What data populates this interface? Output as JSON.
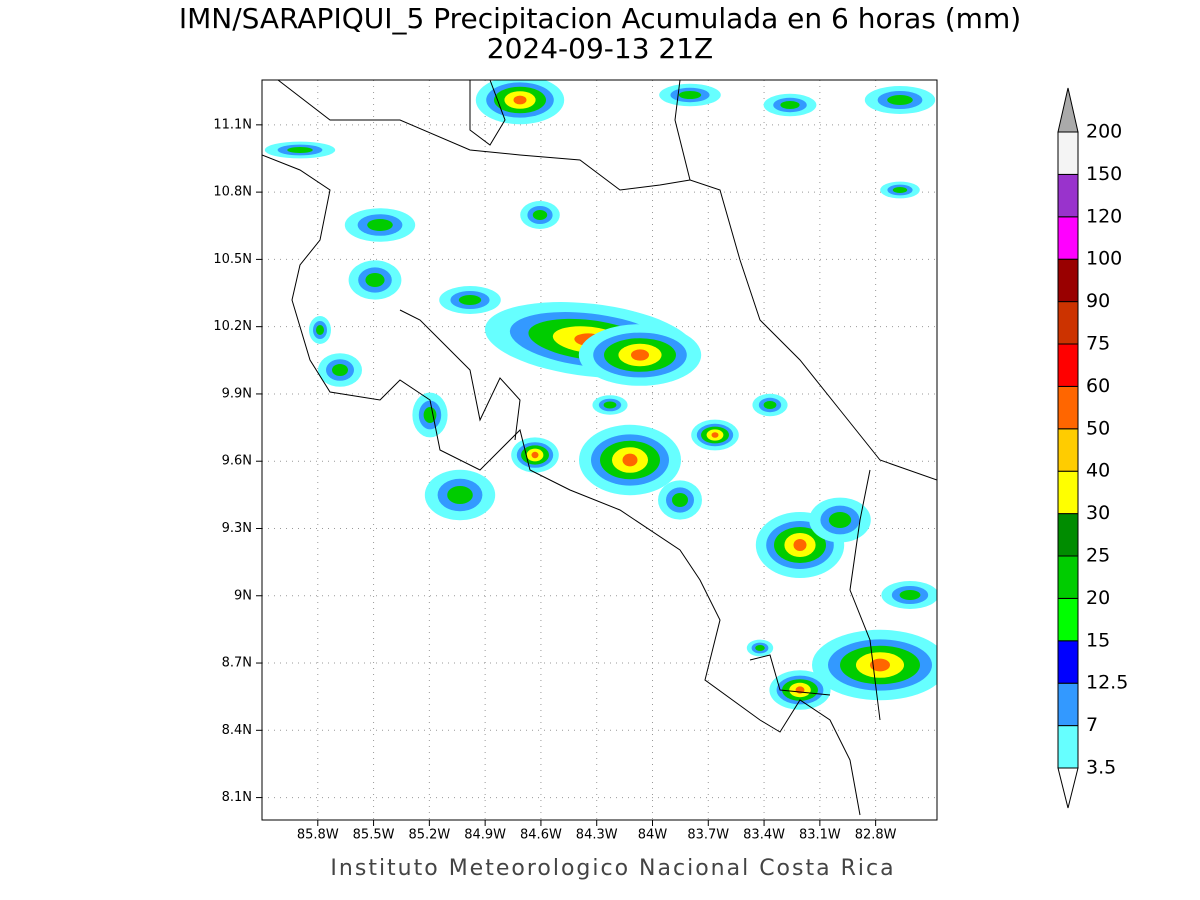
{
  "title": "IMN/SARAPIQUI_5 Precipitacion Acumulada en 6 horas (mm)",
  "subtitle": "2024-09-13 21Z",
  "footer": "Instituto Meteorologico Nacional Costa Rica",
  "map": {
    "xlim": [
      -86.1,
      -82.47
    ],
    "ylim": [
      8.0,
      11.3
    ],
    "xticks": [
      {
        "value": -85.8,
        "label": "85.8W"
      },
      {
        "value": -85.5,
        "label": "85.5W"
      },
      {
        "value": -85.2,
        "label": "85.2W"
      },
      {
        "value": -84.9,
        "label": "84.9W"
      },
      {
        "value": -84.6,
        "label": "84.6W"
      },
      {
        "value": -84.3,
        "label": "84.3W"
      },
      {
        "value": -84,
        "label": "84W"
      },
      {
        "value": -83.7,
        "label": "83.7W"
      },
      {
        "value": -83.4,
        "label": "83.4W"
      },
      {
        "value": -83.1,
        "label": "83.1W"
      },
      {
        "value": -82.8,
        "label": "82.8W"
      }
    ],
    "yticks": [
      {
        "value": 8.1,
        "label": "8.1N"
      },
      {
        "value": 8.4,
        "label": "8.4N"
      },
      {
        "value": 8.7,
        "label": "8.7N"
      },
      {
        "value": 9,
        "label": "9N"
      },
      {
        "value": 9.3,
        "label": "9.3N"
      },
      {
        "value": 9.6,
        "label": "9.6N"
      },
      {
        "value": 9.9,
        "label": "9.9N"
      },
      {
        "value": 10.2,
        "label": "10.2N"
      },
      {
        "value": 10.5,
        "label": "10.5N"
      },
      {
        "value": 10.8,
        "label": "10.8N"
      },
      {
        "value": 11.1,
        "label": "11.1N"
      }
    ],
    "grid": true
  },
  "colorbar": {
    "levels": [
      3.5,
      7,
      12.5,
      15,
      20,
      25,
      30,
      40,
      50,
      60,
      75,
      90,
      100,
      120,
      150,
      200
    ],
    "colors": [
      "#66ffff",
      "#3399ff",
      "#0000ff",
      "#00ff00",
      "#00cc00",
      "#008c00",
      "#ffff00",
      "#ffcc00",
      "#ff6600",
      "#ff0000",
      "#cc3300",
      "#990000",
      "#ff00ff",
      "#9933cc",
      "#f4f4f4"
    ],
    "under_color": "#ffffff",
    "over_color": "#aaaaaa"
  }
}
